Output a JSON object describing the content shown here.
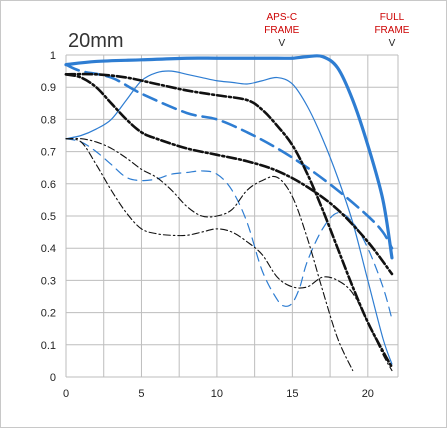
{
  "chart_data": {
    "type": "line",
    "title": "20mm",
    "xlabel": "",
    "ylabel": "",
    "xlim": [
      0,
      22
    ],
    "ylim": [
      0,
      1
    ],
    "x_ticks": [
      "0",
      "5",
      "10",
      "15",
      "20"
    ],
    "y_ticks": [
      "0",
      "0.1",
      "0.2",
      "0.3",
      "0.4",
      "0.5",
      "0.6",
      "0.7",
      "0.8",
      "0.9",
      "1"
    ],
    "grid": true,
    "markers": [
      {
        "label_lines": [
          "APS-C",
          "FRAME"
        ],
        "symbol": "V",
        "x": 14.3
      },
      {
        "label_lines": [
          "FULL",
          "FRAME"
        ],
        "symbol": "V",
        "x": 21.6
      }
    ],
    "series": [
      {
        "style": "solid-thick",
        "color": "#2e7dd2",
        "x": [
          0,
          2,
          5,
          8,
          10,
          12,
          14,
          15,
          16,
          17,
          18,
          19,
          20,
          21,
          21.6
        ],
        "y": [
          0.97,
          0.98,
          0.985,
          0.99,
          0.99,
          0.99,
          0.99,
          0.99,
          0.995,
          0.995,
          0.96,
          0.86,
          0.72,
          0.55,
          0.37
        ]
      },
      {
        "style": "dashed-thick",
        "color": "#2e7dd2",
        "x": [
          0,
          1,
          3,
          5,
          8,
          10,
          12,
          14,
          16,
          18,
          20,
          21,
          21.6
        ],
        "y": [
          0.97,
          0.95,
          0.93,
          0.88,
          0.82,
          0.8,
          0.76,
          0.71,
          0.65,
          0.58,
          0.5,
          0.45,
          0.4
        ]
      },
      {
        "style": "solid-thin",
        "color": "#2e7dd2",
        "x": [
          0,
          1,
          2,
          3,
          4,
          5,
          6,
          7,
          8,
          9,
          10,
          11,
          12,
          13,
          14,
          15,
          16,
          17,
          18,
          19,
          20,
          21,
          21.6
        ],
        "y": [
          0.74,
          0.75,
          0.77,
          0.8,
          0.86,
          0.92,
          0.945,
          0.95,
          0.94,
          0.93,
          0.92,
          0.915,
          0.91,
          0.92,
          0.93,
          0.91,
          0.84,
          0.74,
          0.62,
          0.48,
          0.3,
          0.12,
          0.04
        ]
      },
      {
        "style": "dashed-thin",
        "color": "#2e7dd2",
        "x": [
          0,
          1,
          2,
          3,
          4,
          5,
          6,
          7,
          8,
          9,
          10,
          11,
          12,
          13,
          14,
          14.5,
          15,
          15.5,
          16,
          17,
          18,
          19,
          20,
          21,
          21.6
        ],
        "y": [
          0.74,
          0.73,
          0.7,
          0.66,
          0.62,
          0.61,
          0.615,
          0.63,
          0.635,
          0.64,
          0.63,
          0.58,
          0.48,
          0.33,
          0.24,
          0.22,
          0.23,
          0.28,
          0.36,
          0.46,
          0.51,
          0.48,
          0.4,
          0.28,
          0.18
        ]
      },
      {
        "style": "dashdot-thick",
        "color": "#111111",
        "x": [
          0,
          2,
          4,
          6,
          8,
          10,
          12,
          13,
          14,
          15,
          16,
          17,
          18,
          19,
          20,
          21,
          21.6
        ],
        "y": [
          0.94,
          0.94,
          0.93,
          0.91,
          0.89,
          0.875,
          0.86,
          0.83,
          0.78,
          0.72,
          0.63,
          0.52,
          0.4,
          0.28,
          0.17,
          0.08,
          0.03
        ]
      },
      {
        "style": "dashdot-thick",
        "color": "#111111",
        "x": [
          0,
          1,
          2,
          3,
          4,
          5,
          6,
          8,
          10,
          12,
          14,
          16,
          18,
          20,
          21.6
        ],
        "y": [
          0.94,
          0.93,
          0.9,
          0.85,
          0.8,
          0.76,
          0.74,
          0.71,
          0.69,
          0.67,
          0.64,
          0.59,
          0.52,
          0.42,
          0.32
        ]
      },
      {
        "style": "dashdot-thin",
        "color": "#111111",
        "x": [
          0,
          1,
          2,
          3,
          4,
          5,
          6,
          7,
          8,
          9,
          10,
          11,
          12,
          13,
          14,
          15,
          16,
          17,
          18,
          19
        ],
        "y": [
          0.74,
          0.74,
          0.73,
          0.71,
          0.68,
          0.645,
          0.62,
          0.58,
          0.53,
          0.5,
          0.5,
          0.52,
          0.58,
          0.61,
          0.62,
          0.56,
          0.43,
          0.27,
          0.12,
          0.02
        ]
      },
      {
        "style": "dashdot-thin",
        "color": "#111111",
        "x": [
          0,
          1,
          2,
          3,
          4,
          5,
          6,
          7,
          8,
          9,
          10,
          11,
          12,
          13,
          14,
          15,
          16,
          17,
          18,
          19,
          20,
          21,
          21.6
        ],
        "y": [
          0.74,
          0.73,
          0.66,
          0.58,
          0.51,
          0.46,
          0.445,
          0.44,
          0.44,
          0.45,
          0.46,
          0.45,
          0.42,
          0.38,
          0.31,
          0.28,
          0.28,
          0.31,
          0.3,
          0.26,
          0.17,
          0.07,
          0.02
        ]
      }
    ]
  }
}
